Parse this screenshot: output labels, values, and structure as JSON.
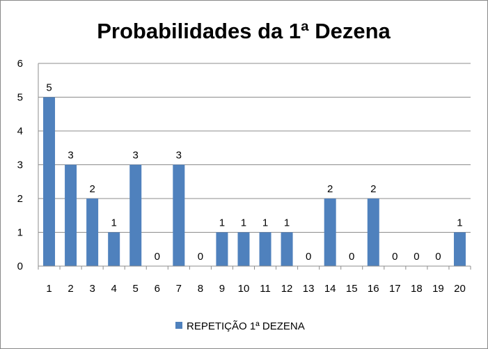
{
  "chart_data": {
    "type": "bar",
    "title": "Probabilidades da 1ª Dezena",
    "xlabel": "",
    "ylabel": "",
    "categories": [
      "1",
      "2",
      "3",
      "4",
      "5",
      "6",
      "7",
      "8",
      "9",
      "10",
      "11",
      "12",
      "13",
      "14",
      "15",
      "16",
      "17",
      "18",
      "19",
      "20"
    ],
    "series": [
      {
        "name": "REPETIÇÃO 1ª DEZENA",
        "values": [
          5,
          3,
          2,
          1,
          3,
          0,
          3,
          0,
          1,
          1,
          1,
          1,
          0,
          2,
          0,
          2,
          0,
          0,
          0,
          1
        ],
        "color": "#4F81BD"
      }
    ],
    "ylim": [
      0,
      6
    ],
    "yticks": [
      "0",
      "1",
      "2",
      "3",
      "4",
      "5",
      "6"
    ],
    "grid": "horizontal",
    "legend_position": "bottom",
    "data_labels": true
  }
}
